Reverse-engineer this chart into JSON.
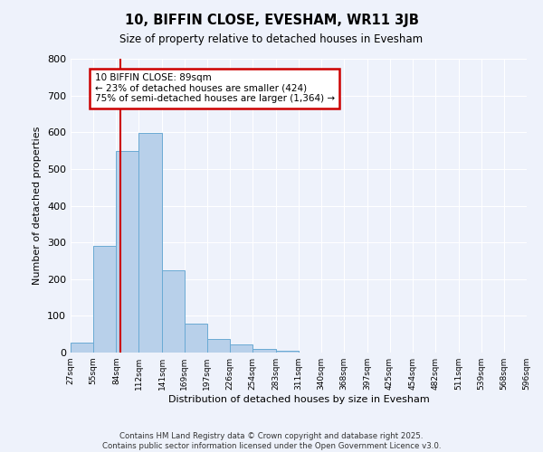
{
  "title": "10, BIFFIN CLOSE, EVESHAM, WR11 3JB",
  "subtitle": "Size of property relative to detached houses in Evesham",
  "xlabel": "Distribution of detached houses by size in Evesham",
  "ylabel": "Number of detached properties",
  "bar_values": [
    28,
    290,
    548,
    598,
    225,
    78,
    37,
    22,
    10,
    5,
    0,
    0,
    0,
    0,
    0,
    0,
    0,
    0,
    0,
    0
  ],
  "bin_edges": [
    27,
    55,
    84,
    112,
    141,
    169,
    197,
    226,
    254,
    283,
    311,
    340,
    368,
    397,
    425,
    454,
    482,
    511,
    539,
    568,
    596
  ],
  "tick_labels": [
    "27sqm",
    "55sqm",
    "84sqm",
    "112sqm",
    "141sqm",
    "169sqm",
    "197sqm",
    "226sqm",
    "254sqm",
    "283sqm",
    "311sqm",
    "340sqm",
    "368sqm",
    "397sqm",
    "425sqm",
    "454sqm",
    "482sqm",
    "511sqm",
    "539sqm",
    "568sqm",
    "596sqm"
  ],
  "bar_color": "#b8d0ea",
  "bar_edge_color": "#6aaad4",
  "vline_x": 89,
  "ylim": [
    0,
    800
  ],
  "yticks": [
    0,
    100,
    200,
    300,
    400,
    500,
    600,
    700,
    800
  ],
  "annotation_title": "10 BIFFIN CLOSE: 89sqm",
  "annotation_line1": "← 23% of detached houses are smaller (424)",
  "annotation_line2": "75% of semi-detached houses are larger (1,364) →",
  "annotation_box_color": "#ffffff",
  "annotation_border_color": "#cc0000",
  "vline_color": "#cc0000",
  "bg_color": "#eef2fb",
  "grid_color": "#ffffff",
  "footer_line1": "Contains HM Land Registry data © Crown copyright and database right 2025.",
  "footer_line2": "Contains public sector information licensed under the Open Government Licence v3.0."
}
